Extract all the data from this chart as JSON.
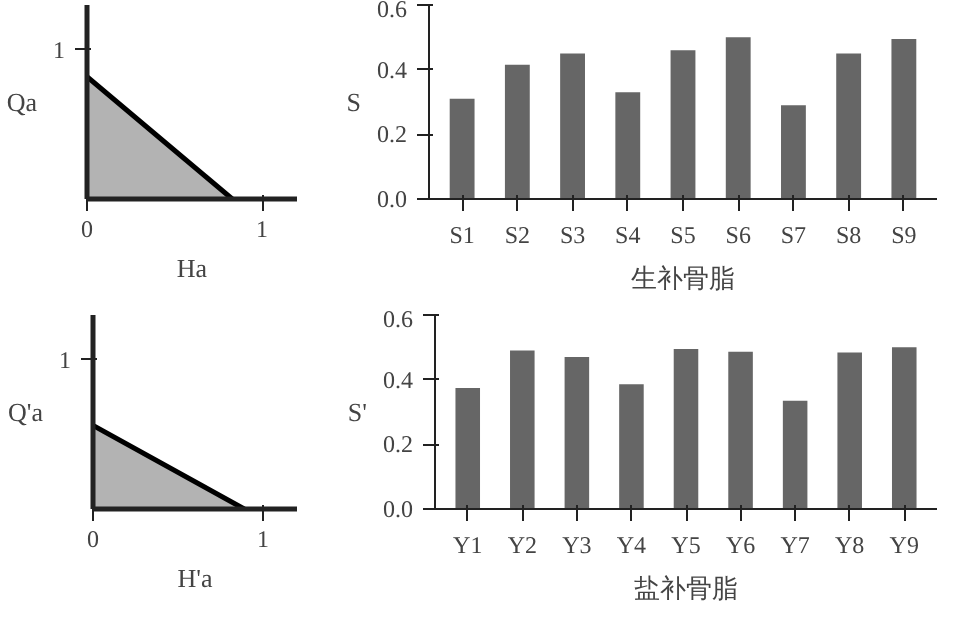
{
  "chart_data": [
    {
      "type": "area",
      "xlabel": "Ha",
      "ylabel": "Qa",
      "x": [
        0,
        0.83
      ],
      "color": "#b3b3b3",
      "values": [
        0.82,
        0
      ],
      "xlim": [
        0,
        1.2
      ],
      "ylim": [
        0,
        1.3
      ],
      "xticks": [
        0,
        1
      ],
      "yticks": [
        1
      ],
      "grid": false
    },
    {
      "type": "bar",
      "xlabel": "生补骨脂",
      "ylabel": "S",
      "categories": [
        "S1",
        "S2",
        "S3",
        "S4",
        "S5",
        "S6",
        "S7",
        "S8",
        "S9"
      ],
      "color": "#666666",
      "values": [
        0.31,
        0.415,
        0.45,
        0.33,
        0.46,
        0.5,
        0.29,
        0.45,
        0.495
      ],
      "ylim": [
        0,
        0.6
      ],
      "yticks": [
        {
          "value": 0,
          "label": "0.0"
        },
        0.2,
        0.4,
        0.6
      ],
      "grid": false
    },
    {
      "type": "area",
      "xlabel": "H'a",
      "ylabel": "Q'a",
      "x": [
        0,
        0.89
      ],
      "color": "#b3b3b3",
      "values": [
        0.56,
        0
      ],
      "xlim": [
        0,
        1.2
      ],
      "ylim": [
        0,
        1.3
      ],
      "xticks": [
        0,
        1
      ],
      "yticks": [
        1
      ],
      "grid": false
    },
    {
      "type": "bar",
      "xlabel": "盐补骨脂",
      "ylabel": "S'",
      "categories": [
        "Y1",
        "Y2",
        "Y3",
        "Y4",
        "Y5",
        "Y6",
        "Y7",
        "Y8",
        "Y9"
      ],
      "color": "#666666",
      "values": [
        0.374,
        0.49,
        0.47,
        0.386,
        0.495,
        0.486,
        0.335,
        0.484,
        0.5
      ],
      "ylim": [
        0,
        0.6
      ],
      "yticks": [
        {
          "value": 0,
          "label": "0.0"
        },
        0.2,
        0.4,
        0.6
      ],
      "grid": false
    }
  ]
}
